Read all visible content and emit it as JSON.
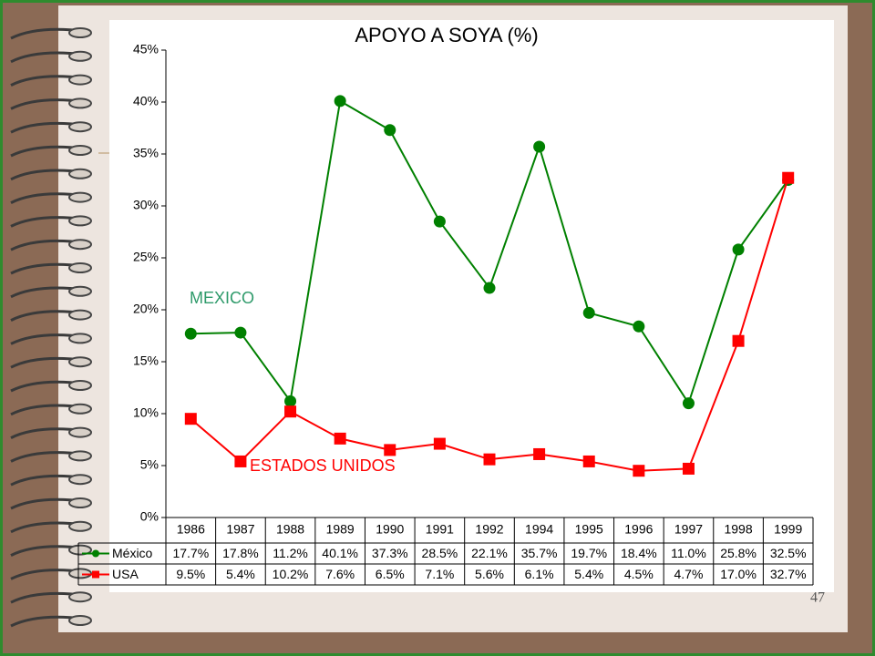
{
  "chart_data": {
    "type": "line",
    "title": "APOYO A SOYA (%)",
    "categories": [
      "1986",
      "1987",
      "1988",
      "1989",
      "1990",
      "1991",
      "1992",
      "1994",
      "1995",
      "1996",
      "1997",
      "1998",
      "1999"
    ],
    "series": [
      {
        "name": "México",
        "color": "#008000",
        "marker": "circle",
        "values": [
          17.7,
          17.8,
          11.2,
          40.1,
          37.3,
          28.5,
          22.1,
          35.7,
          19.7,
          18.4,
          11.0,
          25.8,
          32.5
        ],
        "value_labels": [
          "17.7%",
          "17.8%",
          "11.2%",
          "40.1%",
          "37.3%",
          "28.5%",
          "22.1%",
          "35.7%",
          "19.7%",
          "18.4%",
          "11.0%",
          "25.8%",
          "32.5%"
        ]
      },
      {
        "name": "USA",
        "color": "#ff0000",
        "marker": "square",
        "values": [
          9.5,
          5.4,
          10.2,
          7.6,
          6.5,
          7.1,
          5.6,
          6.1,
          5.4,
          4.5,
          4.7,
          17.0,
          32.7
        ],
        "value_labels": [
          "9.5%",
          "5.4%",
          "10.2%",
          "7.6%",
          "6.5%",
          "7.1%",
          "5.6%",
          "6.1%",
          "5.4%",
          "4.5%",
          "4.7%",
          "17.0%",
          "32.7%"
        ]
      }
    ],
    "ylim": [
      0,
      45
    ],
    "yticks": [
      {
        "value": 0,
        "label": "0%"
      },
      {
        "value": 5,
        "label": "5%"
      },
      {
        "value": 10,
        "label": "10%"
      },
      {
        "value": 15,
        "label": "15%"
      },
      {
        "value": 20,
        "label": "20%"
      },
      {
        "value": 25,
        "label": "25%"
      },
      {
        "value": 30,
        "label": "30%"
      },
      {
        "value": 35,
        "label": "35%"
      },
      {
        "value": 40,
        "label": "40%"
      },
      {
        "value": 45,
        "label": "45%"
      }
    ],
    "grid": false,
    "annotations": [
      "MEXICO",
      "ESTADOS UNIDOS"
    ]
  },
  "slide": {
    "page_number": "47"
  }
}
